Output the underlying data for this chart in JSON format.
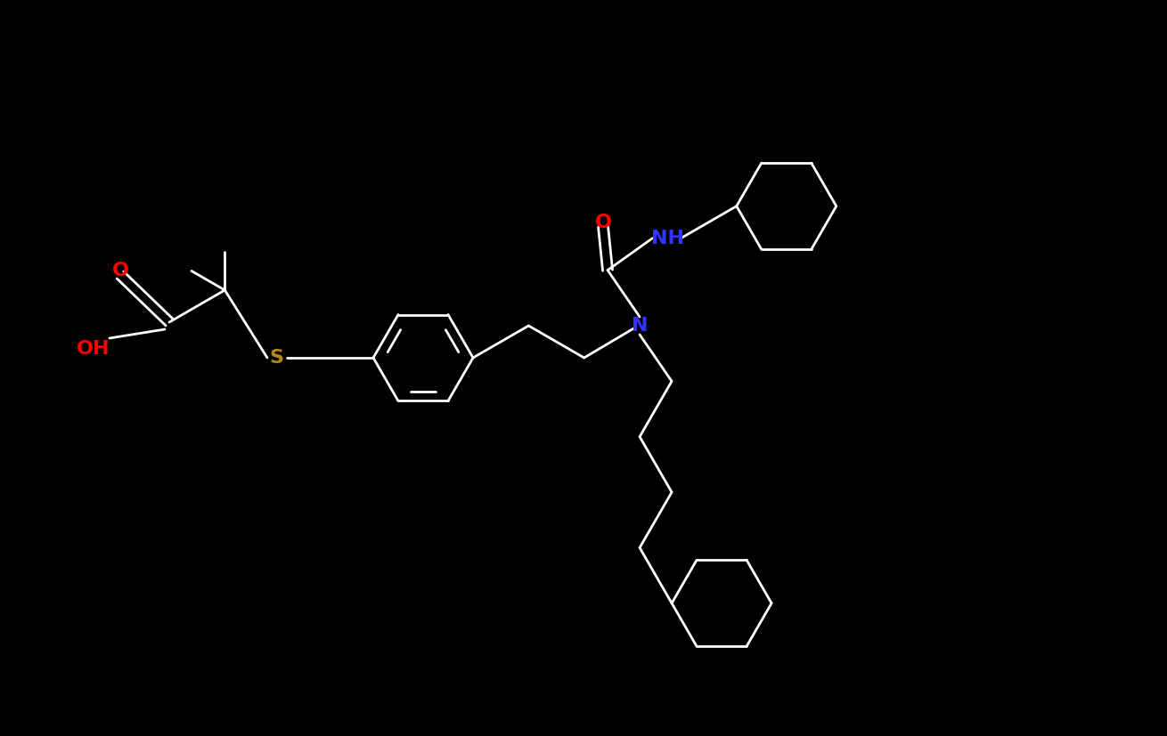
{
  "background_color": "#000000",
  "atom_colors": {
    "C": "#ffffff",
    "N": "#3333ff",
    "O": "#ff0000",
    "S": "#b8860b",
    "H": "#ffffff"
  },
  "bond_color": "#ffffff",
  "figsize": [
    13.1,
    8.27
  ],
  "dpi": 100,
  "bond_lw": 2.0,
  "font_size": 16
}
